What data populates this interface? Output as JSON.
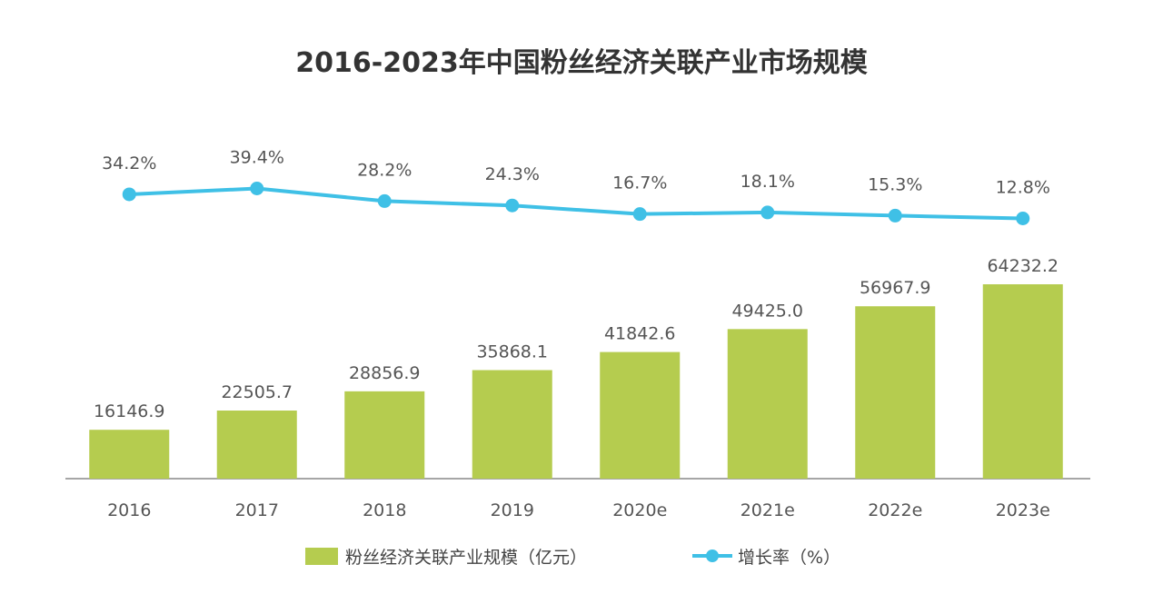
{
  "chart_data": {
    "type": "bar",
    "title": "2016-2023年中国粉丝经济关联产业市场规模",
    "categories": [
      "2016",
      "2017",
      "2018",
      "2019",
      "2020e",
      "2021e",
      "2022e",
      "2023e"
    ],
    "series": [
      {
        "name": "粉丝经济关联产业规模（亿元）",
        "type": "bar",
        "color": "#b5cc4f",
        "values": [
          16146.9,
          22505.7,
          28856.9,
          35868.1,
          41842.6,
          49425.0,
          56967.9,
          64232.2
        ],
        "labels": [
          "16146.9",
          "22505.7",
          "28856.9",
          "35868.1",
          "41842.6",
          "49425.0",
          "56967.9",
          "64232.2"
        ]
      },
      {
        "name": "增长率（%）",
        "type": "line",
        "color": "#3fc0e6",
        "values": [
          34.2,
          39.4,
          28.2,
          24.3,
          16.7,
          18.1,
          15.3,
          12.8
        ],
        "labels": [
          "34.2%",
          "39.4%",
          "28.2%",
          "24.3%",
          "16.7%",
          "18.1%",
          "15.3%",
          "12.8%"
        ]
      }
    ],
    "legend_position": "bottom",
    "grid": false
  }
}
